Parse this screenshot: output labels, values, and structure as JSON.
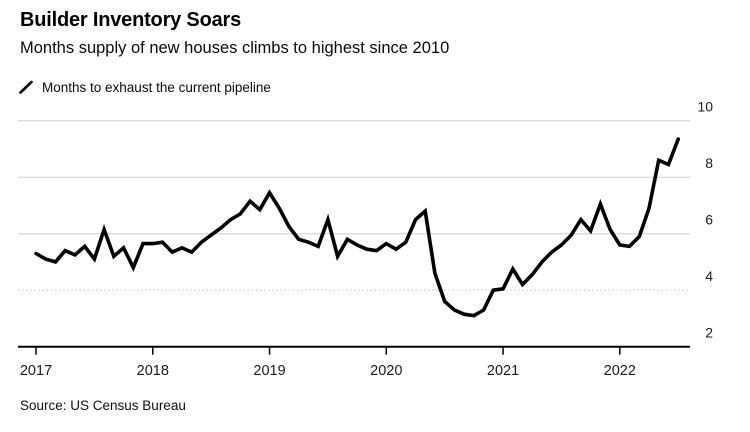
{
  "header": {
    "title": "Builder Inventory Soars",
    "subtitle": "Months supply of new houses climbs to highest since 2010"
  },
  "legend": {
    "label": "Months to exhaust the current pipeline"
  },
  "source": "Source: US Census Bureau",
  "colors": {
    "line": "#000000",
    "grid": "#cdcdcd",
    "grid_dotted": "#c4c4c4",
    "axis": "#1a1a1a",
    "tick_label": "#1a1a1a",
    "background": "#ffffff"
  },
  "chart_data": {
    "type": "line",
    "title": "Builder Inventory Soars",
    "subtitle": "Months supply of new houses climbs to highest since 2010",
    "series_name": "Months to exhaust the current pipeline",
    "unit": "months",
    "frequency": "monthly",
    "x_start": "2017-01",
    "x_end": "2022-07",
    "x_tick_labels": [
      "2017",
      "2018",
      "2019",
      "2020",
      "2021",
      "2022"
    ],
    "y_ticks": [
      2,
      4,
      6,
      8,
      10
    ],
    "ylim": [
      2,
      10
    ],
    "grid": "horizontal",
    "dotted_gridline_at": 4,
    "legend_position": "top-left",
    "values": [
      5.3,
      5.1,
      5.0,
      5.4,
      5.25,
      5.55,
      5.1,
      6.15,
      5.2,
      5.5,
      4.8,
      5.65,
      5.65,
      5.7,
      5.35,
      5.5,
      5.35,
      5.7,
      5.95,
      6.2,
      6.5,
      6.7,
      7.15,
      6.85,
      7.45,
      6.9,
      6.25,
      5.8,
      5.7,
      5.55,
      6.5,
      5.2,
      5.8,
      5.6,
      5.45,
      5.4,
      5.65,
      5.45,
      5.7,
      6.5,
      6.8,
      4.6,
      3.6,
      3.3,
      3.15,
      3.1,
      3.3,
      4.0,
      4.05,
      4.75,
      4.2,
      4.55,
      5.0,
      5.35,
      5.6,
      5.95,
      6.5,
      6.1,
      7.05,
      6.15,
      5.6,
      5.55,
      5.9,
      6.9,
      8.6,
      8.45,
      9.35
    ]
  }
}
